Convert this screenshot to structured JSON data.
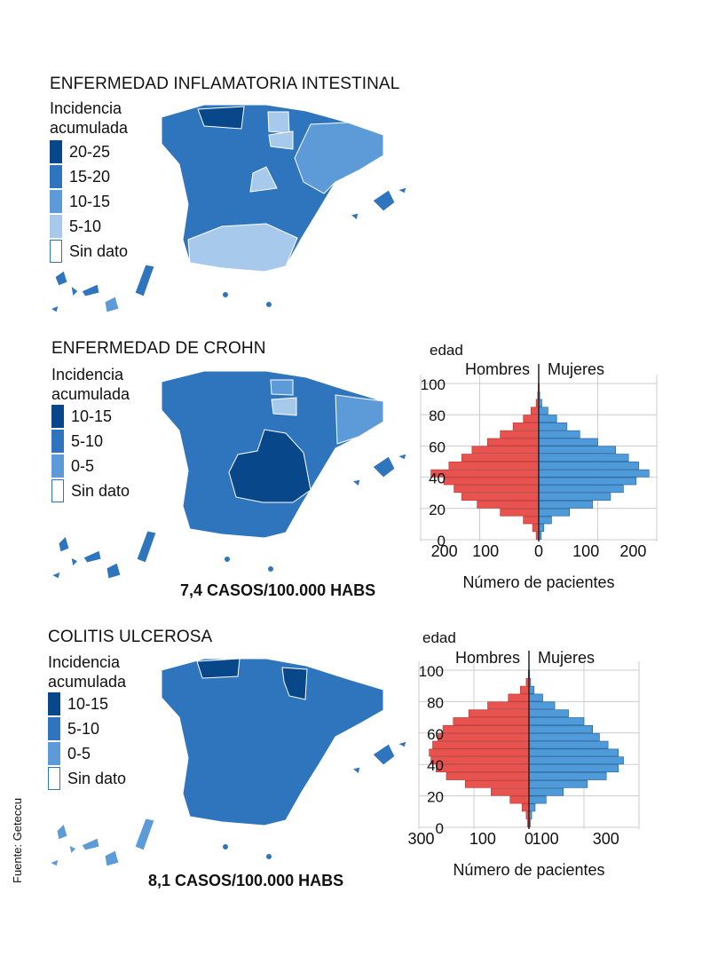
{
  "source": "Fuente: Geteccu",
  "colors": {
    "shade_1": "#08488a",
    "shade_2": "#2f75bd",
    "shade_3": "#5c9bd8",
    "shade_4": "#a7c9ec",
    "no_data": "#ffffff",
    "men": "#e8524f",
    "women": "#4f9ad8"
  },
  "sections": [
    {
      "title": "ENFERMEDAD INFLAMATORIA INTESTINAL",
      "legend_title": [
        "Incidencia",
        "acumulada"
      ],
      "legend": [
        "20-25",
        "15-20",
        "10-15",
        "5-10",
        "Sin dato"
      ],
      "rate": ""
    },
    {
      "title": "ENFERMEDAD DE CROHN",
      "legend_title": [
        "Incidencia",
        "acumulada"
      ],
      "legend": [
        "10-15",
        "5-10",
        "0-5",
        "Sin dato"
      ],
      "rate": "7,4 CASOS/100.000 HABS"
    },
    {
      "title": "COLITIS ULCEROSA",
      "legend_title": [
        "Incidencia",
        "acumulada"
      ],
      "legend": [
        "10-15",
        "5-10",
        "0-5",
        "Sin dato"
      ],
      "rate": "8,1 CASOS/100.000 HABS"
    }
  ],
  "chart_data": [
    {
      "type": "bar",
      "orientation": "horizontal-pyramid",
      "section": "ENFERMEDAD DE CROHN",
      "ylabel": "edad",
      "xlabel": "Número de pacientes",
      "y_ticks": [
        0,
        20,
        40,
        60,
        80,
        100
      ],
      "x_ticks": [
        "200",
        "100",
        "0",
        "100",
        "200"
      ],
      "xlim": [
        -230,
        230
      ],
      "ylim": [
        0,
        100
      ],
      "ages": [
        0,
        5,
        10,
        15,
        20,
        25,
        30,
        35,
        40,
        45,
        50,
        55,
        60,
        65,
        70,
        75,
        80,
        85,
        90,
        95
      ],
      "series": [
        {
          "name": "Hombres",
          "values": [
            5,
            12,
            30,
            75,
            120,
            150,
            165,
            185,
            210,
            175,
            150,
            130,
            100,
            75,
            50,
            30,
            15,
            5,
            2,
            1
          ]
        },
        {
          "name": "Mujeres",
          "values": [
            5,
            10,
            25,
            60,
            105,
            140,
            165,
            190,
            215,
            195,
            175,
            150,
            115,
            80,
            55,
            35,
            18,
            6,
            2,
            1
          ]
        }
      ]
    },
    {
      "type": "bar",
      "orientation": "horizontal-pyramid",
      "section": "COLITIS ULCEROSA",
      "ylabel": "edad",
      "xlabel": "Número de pacientes",
      "y_ticks": [
        0,
        20,
        40,
        60,
        80,
        100
      ],
      "x_ticks": [
        "300",
        "100",
        "0",
        "100",
        "300"
      ],
      "xlim": [
        -320,
        320
      ],
      "ylim": [
        0,
        100
      ],
      "ages": [
        0,
        5,
        10,
        15,
        20,
        25,
        30,
        35,
        40,
        45,
        50,
        55,
        60,
        65,
        70,
        75,
        80,
        85,
        90,
        95
      ],
      "series": [
        {
          "name": "Hombres",
          "values": [
            4,
            8,
            20,
            55,
            110,
            185,
            240,
            270,
            285,
            290,
            280,
            265,
            250,
            220,
            175,
            120,
            60,
            25,
            8,
            2
          ]
        },
        {
          "name": "Mujeres",
          "values": [
            4,
            8,
            18,
            50,
            100,
            170,
            225,
            260,
            275,
            260,
            230,
            205,
            185,
            160,
            115,
            75,
            40,
            15,
            5,
            2
          ]
        }
      ]
    }
  ]
}
